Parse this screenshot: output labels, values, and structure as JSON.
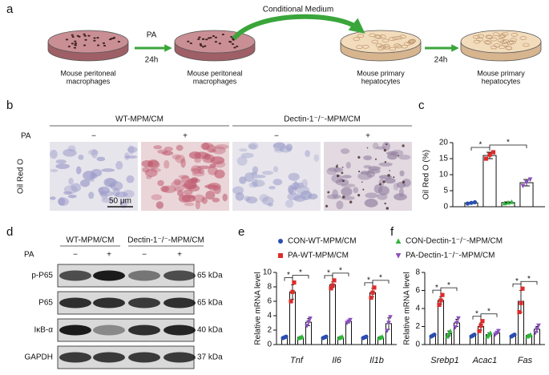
{
  "figure": {
    "panel_labels": [
      "a",
      "b",
      "c",
      "d",
      "e",
      "f"
    ],
    "schematic": {
      "top_label": "Conditional Medium",
      "dishes": [
        {
          "label": [
            "Mouse peritoneal",
            "macrophages"
          ]
        },
        {
          "label": [
            "Mouse peritoneal",
            "macrophages"
          ]
        },
        {
          "label": [
            "Mouse primary",
            "hepatocytes"
          ]
        },
        {
          "label": [
            "Mouse primary",
            "hepatocytes"
          ]
        }
      ],
      "arrows": [
        {
          "above": "PA",
          "below": "24h"
        },
        {
          "below": "24h"
        }
      ]
    },
    "staining": {
      "groups": [
        "WT-MPM/CM",
        "Dectin-1⁻/⁻-MPM/CM"
      ],
      "treatment_label": "PA",
      "treatments": [
        "−",
        "+",
        "−",
        "+"
      ],
      "stain": "Oil Red O",
      "scale_bar": "50 μm"
    },
    "blot": {
      "groups": [
        "WT-MPM/CM",
        "Dectin-1⁻/⁻-MPM/CM"
      ],
      "treatment_label": "PA",
      "treatments": [
        "−",
        "+",
        "−",
        "+"
      ],
      "proteins": [
        "p-P65",
        "P65",
        "IκB-α",
        "GAPDH"
      ],
      "sizes": [
        "65 kDa",
        "65 kDa",
        "40 kDa",
        "37 kDa"
      ]
    }
  },
  "chart_data": [
    {
      "type": "bar",
      "y_label": "Oil Red O (%)",
      "categories": [
        null
      ],
      "ylim": [
        0,
        20
      ],
      "yticks": [
        0,
        5,
        10,
        15,
        20
      ],
      "markers": [
        "circle",
        "square",
        "triangle",
        "triangle-down"
      ],
      "series": [
        {
          "color": "#2a4fb0",
          "values": [
            1.2
          ],
          "errors": [
            0.2
          ],
          "points": [
            [
              1.0,
              1.2,
              1.4
            ]
          ]
        },
        {
          "color": "#e02a2a",
          "values": [
            16
          ],
          "errors": [
            1.0
          ],
          "points": [
            [
              15,
              16.2,
              17
            ]
          ]
        },
        {
          "color": "#2fb53a",
          "values": [
            1.3
          ],
          "errors": [
            0.2
          ],
          "points": [
            [
              1.1,
              1.3,
              1.5
            ]
          ]
        },
        {
          "color": "#8b4fc0",
          "values": [
            7.5
          ],
          "errors": [
            1.0
          ],
          "points": [
            [
              6.5,
              7.6,
              8.5
            ]
          ]
        }
      ],
      "significance": [
        {
          "category": 0,
          "pair": [
            0,
            1
          ],
          "label": "*"
        },
        {
          "category": 0,
          "pair": [
            1,
            3
          ],
          "label": "*"
        }
      ]
    },
    {
      "type": "bar",
      "y_label": "Relative mRNA level",
      "categories": [
        "Tnf",
        "Il6",
        "Il1b"
      ],
      "ylim": [
        0,
        10
      ],
      "yticks": [
        0,
        2,
        4,
        6,
        8,
        10
      ],
      "markers": [
        "circle",
        "square",
        "triangle",
        "triangle-down"
      ],
      "series": [
        {
          "name": "CON-WT-MPM/CM",
          "color": "#2a4fb0",
          "values": [
            1.0,
            1.0,
            1.0
          ],
          "errors": [
            0.1,
            0.1,
            0.1
          ],
          "points": [
            [
              0.9,
              1.0,
              1.1
            ],
            [
              0.9,
              1.0,
              1.1
            ],
            [
              0.9,
              1.0,
              1.1
            ]
          ]
        },
        {
          "name": "PA-WT-MPM/CM",
          "color": "#e02a2a",
          "values": [
            7.3,
            8.3,
            7.2
          ],
          "errors": [
            1.0,
            0.4,
            0.6
          ],
          "points": [
            [
              6.0,
              7.3,
              8.6
            ],
            [
              7.8,
              8.2,
              8.9
            ],
            [
              6.5,
              7.2,
              7.9
            ]
          ]
        },
        {
          "name": "CON-Dectin-1⁻/⁻-MPM/CM",
          "color": "#2fb53a",
          "values": [
            1.0,
            1.0,
            1.0
          ],
          "errors": [
            0.1,
            0.1,
            0.1
          ],
          "points": [
            [
              0.9,
              1.0,
              1.1
            ],
            [
              0.9,
              1.0,
              1.1
            ],
            [
              0.9,
              1.0,
              1.1
            ]
          ]
        },
        {
          "name": "PA-Dectin-1⁻/⁻-MPM/CM",
          "color": "#8b4fc0",
          "values": [
            3.1,
            3.2,
            2.9
          ],
          "errors": [
            0.5,
            0.2,
            0.8
          ],
          "points": [
            [
              2.6,
              3.1,
              3.6
            ],
            [
              3.0,
              3.2,
              3.4
            ],
            [
              1.9,
              3.0,
              3.8
            ]
          ]
        }
      ],
      "significance": [
        {
          "category": 0,
          "pair": [
            0,
            1
          ],
          "label": "*"
        },
        {
          "category": 0,
          "pair": [
            1,
            3
          ],
          "label": "*"
        },
        {
          "category": 1,
          "pair": [
            0,
            1
          ],
          "label": "*"
        },
        {
          "category": 1,
          "pair": [
            1,
            3
          ],
          "label": "*"
        },
        {
          "category": 2,
          "pair": [
            0,
            1
          ],
          "label": "*"
        },
        {
          "category": 2,
          "pair": [
            1,
            3
          ],
          "label": "*"
        }
      ]
    },
    {
      "type": "bar",
      "y_label": "Relative mRNA level",
      "categories": [
        "Srebp1",
        "Acac1",
        "Fas"
      ],
      "ylim": [
        0,
        8
      ],
      "yticks": [
        0,
        2,
        4,
        6,
        8
      ],
      "markers": [
        "circle",
        "square",
        "triangle",
        "triangle-down"
      ],
      "series": [
        {
          "color": "#2a4fb0",
          "values": [
            1.0,
            1.0,
            1.0
          ],
          "errors": [
            0.1,
            0.1,
            0.1
          ],
          "points": [
            [
              0.9,
              1.0,
              1.1
            ],
            [
              0.9,
              1.0,
              1.1
            ],
            [
              0.9,
              1.0,
              1.1
            ]
          ]
        },
        {
          "color": "#e02a2a",
          "values": [
            4.9,
            2.0,
            4.8
          ],
          "errors": [
            0.4,
            0.4,
            1.2
          ],
          "points": [
            [
              4.4,
              4.9,
              5.5
            ],
            [
              1.5,
              2.1,
              2.6
            ],
            [
              3.6,
              4.6,
              6.2
            ]
          ]
        },
        {
          "color": "#2fb53a",
          "values": [
            1.2,
            1.1,
            1.0
          ],
          "errors": [
            0.3,
            0.2,
            0.1
          ],
          "points": [
            [
              0.9,
              1.2,
              1.5
            ],
            [
              0.9,
              1.1,
              1.3
            ],
            [
              0.9,
              1.0,
              1.1
            ]
          ]
        },
        {
          "color": "#8b4fc0",
          "values": [
            2.4,
            1.3,
            1.7
          ],
          "errors": [
            0.4,
            0.1,
            0.3
          ],
          "points": [
            [
              1.9,
              2.4,
              2.9
            ],
            [
              1.1,
              1.3,
              1.5
            ],
            [
              1.3,
              1.7,
              2.1
            ]
          ]
        }
      ],
      "significance": [
        {
          "category": 0,
          "pair": [
            0,
            1
          ],
          "label": "*"
        },
        {
          "category": 0,
          "pair": [
            1,
            3
          ],
          "label": "*"
        },
        {
          "category": 1,
          "pair": [
            0,
            1
          ],
          "label": "*"
        },
        {
          "category": 1,
          "pair": [
            1,
            3
          ],
          "label": "*"
        },
        {
          "category": 2,
          "pair": [
            0,
            1
          ],
          "label": "*"
        },
        {
          "category": 2,
          "pair": [
            1,
            3
          ],
          "label": "*"
        }
      ]
    }
  ]
}
